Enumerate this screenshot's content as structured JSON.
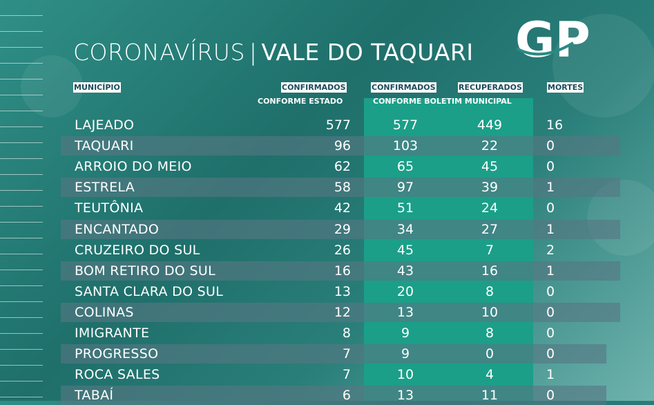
{
  "title": {
    "part1": "CORONAVÍRUS",
    "separator": "|",
    "part2": "VALE DO TAQUARI"
  },
  "logo": {
    "text": "GP"
  },
  "headers": {
    "municipio": "MUNICÍPIO",
    "confirmados_estado": "CONFIRMADOS",
    "confirmados_estado_sub": "CONFORME ESTADO",
    "confirmados_boletim": "CONFIRMADOS",
    "recuperados": "RECUPERADOS",
    "boletim_sub": "CONFORME BOLETIM MUNICIPAL",
    "mortes": "MORTES"
  },
  "colors": {
    "teal_band": "#1b9f88",
    "row_shade": "#557882",
    "header_text": "#1a4b59"
  },
  "rows": [
    {
      "municipio": "LAJEADO",
      "estado": "577",
      "boletim": "577",
      "recuperados": "449",
      "mortes": "16"
    },
    {
      "municipio": "TAQUARI",
      "estado": "96",
      "boletim": "103",
      "recuperados": "22",
      "mortes": "0"
    },
    {
      "municipio": "ARROIO DO MEIO",
      "estado": "62",
      "boletim": "65",
      "recuperados": "45",
      "mortes": "0"
    },
    {
      "municipio": "ESTRELA",
      "estado": "58",
      "boletim": "97",
      "recuperados": "39",
      "mortes": "1"
    },
    {
      "municipio": "TEUTÔNIA",
      "estado": "42",
      "boletim": "51",
      "recuperados": "24",
      "mortes": "0"
    },
    {
      "municipio": "ENCANTADO",
      "estado": "29",
      "boletim": "34",
      "recuperados": "27",
      "mortes": "1"
    },
    {
      "municipio": "CRUZEIRO DO SUL",
      "estado": "26",
      "boletim": "45",
      "recuperados": "7",
      "mortes": "2"
    },
    {
      "municipio": "BOM RETIRO DO SUL",
      "estado": "16",
      "boletim": "43",
      "recuperados": "16",
      "mortes": "1"
    },
    {
      "municipio": "SANTA CLARA DO SUL",
      "estado": "13",
      "boletim": "20",
      "recuperados": "8",
      "mortes": "0"
    },
    {
      "municipio": "COLINAS",
      "estado": "12",
      "boletim": "13",
      "recuperados": "10",
      "mortes": "0"
    },
    {
      "municipio": "IMIGRANTE",
      "estado": "8",
      "boletim": "9",
      "recuperados": "8",
      "mortes": "0"
    },
    {
      "municipio": "PROGRESSO",
      "estado": "7",
      "boletim": "9",
      "recuperados": "0",
      "mortes": "0"
    },
    {
      "municipio": "ROCA SALES",
      "estado": "7",
      "boletim": "10",
      "recuperados": "4",
      "mortes": "1"
    },
    {
      "municipio": "TABAÍ",
      "estado": "6",
      "boletim": "13",
      "recuperados": "11",
      "mortes": "0"
    }
  ]
}
